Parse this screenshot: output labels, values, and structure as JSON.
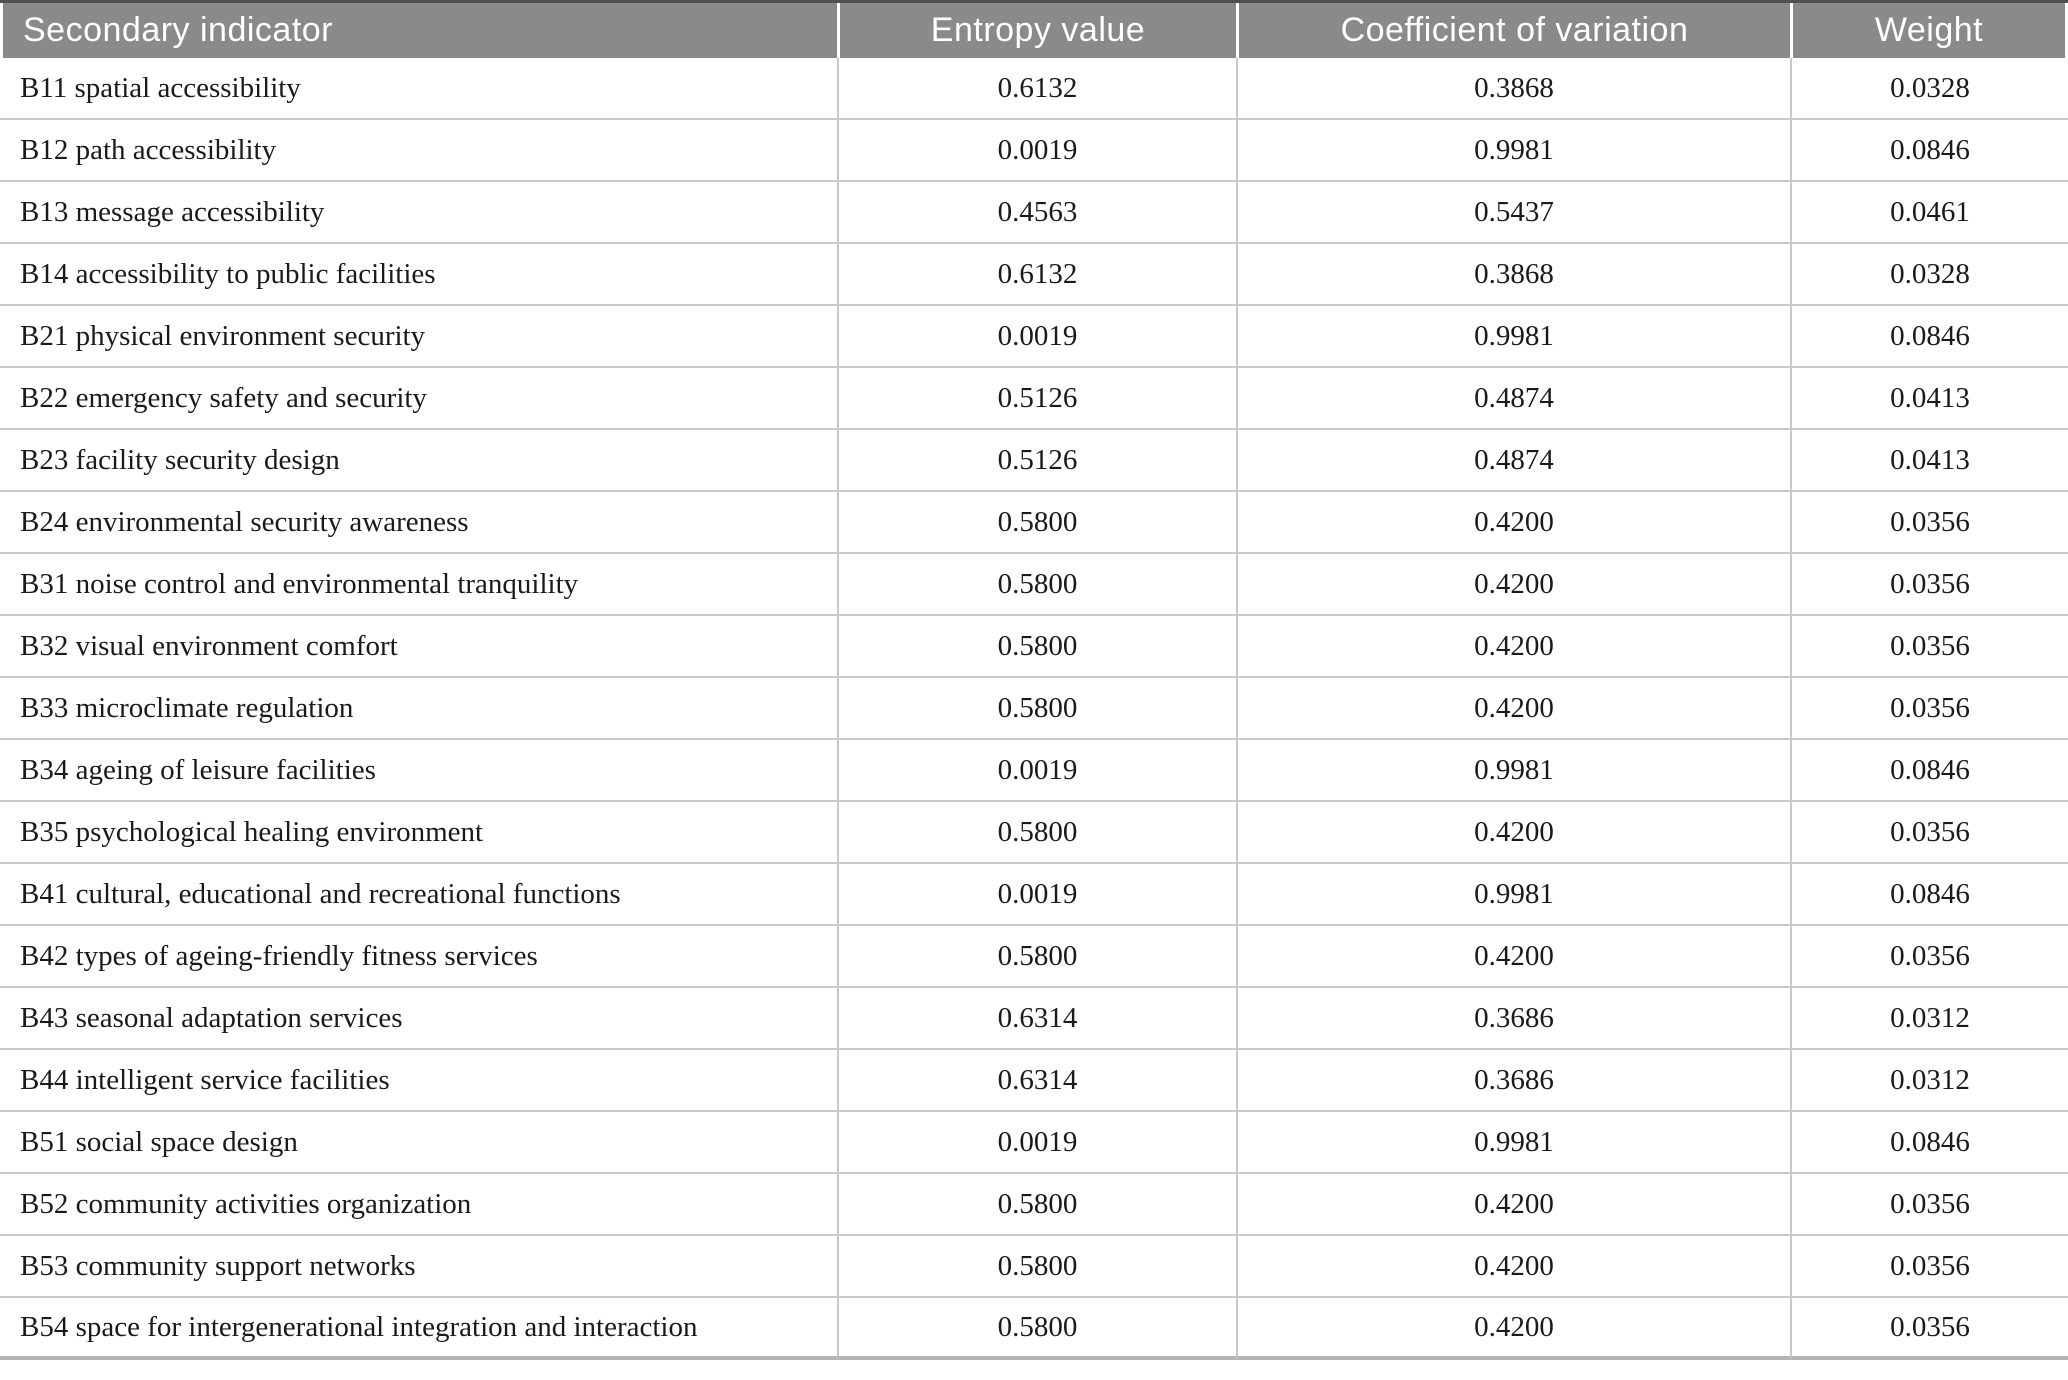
{
  "table": {
    "columns": [
      {
        "key": "indicator",
        "label": "Secondary indicator"
      },
      {
        "key": "entropy",
        "label": "Entropy value"
      },
      {
        "key": "cov",
        "label": "Coefficient of variation"
      },
      {
        "key": "weight",
        "label": "Weight"
      }
    ],
    "rows": [
      {
        "indicator": "B11 spatial accessibility",
        "entropy": "0.6132",
        "cov": "0.3868",
        "weight": "0.0328"
      },
      {
        "indicator": "B12 path accessibility",
        "entropy": "0.0019",
        "cov": "0.9981",
        "weight": "0.0846"
      },
      {
        "indicator": "B13 message accessibility",
        "entropy": "0.4563",
        "cov": "0.5437",
        "weight": "0.0461"
      },
      {
        "indicator": "B14 accessibility to public facilities",
        "entropy": "0.6132",
        "cov": "0.3868",
        "weight": "0.0328"
      },
      {
        "indicator": "B21 physical environment security",
        "entropy": "0.0019",
        "cov": "0.9981",
        "weight": "0.0846"
      },
      {
        "indicator": "B22 emergency safety and security",
        "entropy": "0.5126",
        "cov": "0.4874",
        "weight": "0.0413"
      },
      {
        "indicator": "B23 facility security design",
        "entropy": "0.5126",
        "cov": "0.4874",
        "weight": "0.0413"
      },
      {
        "indicator": "B24 environmental security awareness",
        "entropy": "0.5800",
        "cov": "0.4200",
        "weight": "0.0356"
      },
      {
        "indicator": "B31 noise control and environmental tranquility",
        "entropy": "0.5800",
        "cov": "0.4200",
        "weight": "0.0356"
      },
      {
        "indicator": "B32 visual environment comfort",
        "entropy": "0.5800",
        "cov": "0.4200",
        "weight": "0.0356"
      },
      {
        "indicator": "B33 microclimate regulation",
        "entropy": "0.5800",
        "cov": "0.4200",
        "weight": "0.0356"
      },
      {
        "indicator": "B34 ageing of leisure facilities",
        "entropy": "0.0019",
        "cov": "0.9981",
        "weight": "0.0846"
      },
      {
        "indicator": "B35 psychological healing environment",
        "entropy": "0.5800",
        "cov": "0.4200",
        "weight": "0.0356"
      },
      {
        "indicator": "B41 cultural, educational and recreational functions",
        "entropy": "0.0019",
        "cov": "0.9981",
        "weight": "0.0846"
      },
      {
        "indicator": "B42 types of ageing-friendly fitness services",
        "entropy": "0.5800",
        "cov": "0.4200",
        "weight": "0.0356"
      },
      {
        "indicator": "B43 seasonal adaptation services",
        "entropy": "0.6314",
        "cov": "0.3686",
        "weight": "0.0312"
      },
      {
        "indicator": "B44 intelligent service facilities",
        "entropy": "0.6314",
        "cov": "0.3686",
        "weight": "0.0312"
      },
      {
        "indicator": "B51 social space design",
        "entropy": "0.0019",
        "cov": "0.9981",
        "weight": "0.0846"
      },
      {
        "indicator": "B52 community activities organization",
        "entropy": "0.5800",
        "cov": "0.4200",
        "weight": "0.0356"
      },
      {
        "indicator": "B53 community support networks",
        "entropy": "0.5800",
        "cov": "0.4200",
        "weight": "0.0356"
      },
      {
        "indicator": "B54 space for intergenerational integration and interaction",
        "entropy": "0.5800",
        "cov": "0.4200",
        "weight": "0.0356"
      }
    ]
  },
  "colors": {
    "header_bg": "#8a8a8a",
    "header_text": "#ffffff",
    "top_rule": "#4f4f4f",
    "row_border": "#c9c9c9",
    "bottom_rule": "#b3b3b3",
    "body_text": "#1a1a1a"
  }
}
